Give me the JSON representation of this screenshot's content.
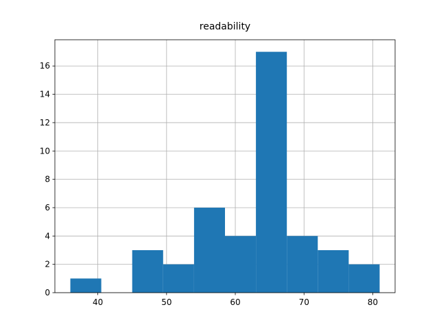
{
  "chart_data": {
    "type": "histogram",
    "title": "readability",
    "bins": [
      36,
      40.5,
      45,
      49.5,
      54,
      58.5,
      63,
      67.5,
      72,
      76.5,
      81
    ],
    "values": [
      1,
      0,
      3,
      2,
      6,
      4,
      17,
      4,
      3,
      2
    ],
    "color": "#1f77b4",
    "xlim": [
      33.75,
      83.25
    ],
    "xticks": [
      40,
      50,
      60,
      70,
      80
    ],
    "ylim": [
      0,
      17.85
    ],
    "yticks": [
      0,
      2,
      4,
      6,
      8,
      10,
      12,
      14,
      16
    ],
    "grid": true
  }
}
